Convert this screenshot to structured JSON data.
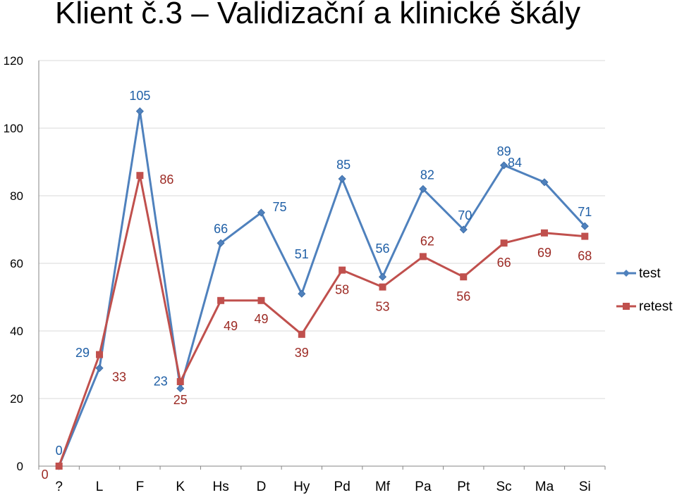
{
  "chart_data": {
    "type": "line",
    "title": "Klient č.3 – Validizační a klinické škály",
    "categories": [
      "?",
      "L",
      "F",
      "K",
      "Hs",
      "D",
      "Hy",
      "Pd",
      "Mf",
      "Pa",
      "Pt",
      "Sc",
      "Ma",
      "Si"
    ],
    "series": [
      {
        "name": "test",
        "color": "#4F81BD",
        "marker": "diamond",
        "values": [
          0,
          29,
          105,
          23,
          66,
          75,
          51,
          85,
          56,
          82,
          70,
          89,
          84,
          71
        ]
      },
      {
        "name": "retest",
        "color": "#C0504D",
        "marker": "square",
        "values": [
          0,
          33,
          86,
          25,
          49,
          49,
          39,
          58,
          53,
          62,
          56,
          66,
          69,
          68
        ]
      }
    ],
    "ylim": [
      0,
      120
    ],
    "yticks": [
      "0",
      "20",
      "40",
      "60",
      "80",
      "100",
      "120"
    ],
    "grid": true,
    "legend": "right"
  }
}
